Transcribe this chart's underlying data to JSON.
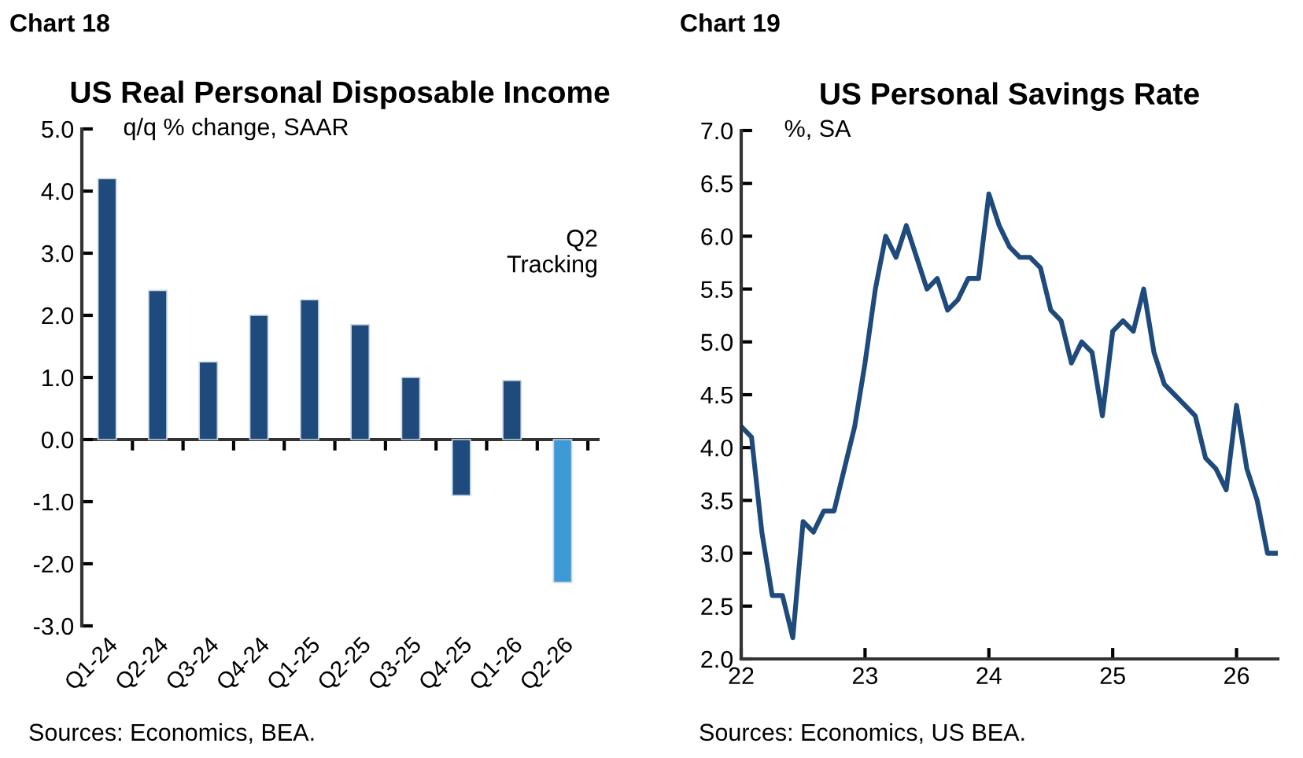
{
  "chart_data": [
    {
      "type": "bar",
      "title": "US Real Personal Disposable Income",
      "ylabel": "q/q % change, SAAR",
      "annotations": [
        "Chart 18",
        "Sources: Economics, BEA.",
        "Q2\nTracking"
      ],
      "categories": [
        "Q1-24",
        "Q2-24",
        "Q3-24",
        "Q4-24",
        "Q1-25",
        "Q2-25",
        "Q3-25",
        "Q4-25",
        "Q1-26",
        "Q2-26"
      ],
      "values": [
        4.2,
        2.4,
        1.25,
        2.0,
        2.25,
        1.85,
        1.0,
        -0.9,
        0.95,
        -2.3
      ],
      "colors": [
        "#1f4a7c",
        "#1f4a7c",
        "#1f4a7c",
        "#1f4a7c",
        "#1f4a7c",
        "#1f4a7c",
        "#1f4a7c",
        "#1f4a7c",
        "#1f4a7c",
        "#3d9ad6"
      ],
      "ylim": [
        -3.0,
        5.0
      ],
      "yticks": [
        {
          "value": -3,
          "label": "-3.0"
        },
        {
          "value": -2,
          "label": "-2.0"
        },
        {
          "value": -1,
          "label": "-1.0"
        },
        {
          "value": 0,
          "label": "0.0"
        },
        {
          "value": 1,
          "label": "1.0"
        },
        {
          "value": 2,
          "label": "2.0"
        },
        {
          "value": 3,
          "label": "3.0"
        },
        {
          "value": 4,
          "label": "4.0"
        },
        {
          "value": 5,
          "label": "5.0"
        }
      ]
    },
    {
      "type": "line",
      "title": "US Personal Savings Rate",
      "ylabel": "%, SA",
      "annotations": [
        "Chart 19",
        "Sources: Economics, US BEA."
      ],
      "x": [
        "2022-01",
        "2022-02",
        "2022-03",
        "2022-04",
        "2022-05",
        "2022-06",
        "2022-07",
        "2022-08",
        "2022-09",
        "2022-10",
        "2022-11",
        "2022-12",
        "2023-01",
        "2023-02",
        "2023-03",
        "2023-04",
        "2023-05",
        "2023-06",
        "2023-07",
        "2023-08",
        "2023-09",
        "2023-10",
        "2023-11",
        "2023-12",
        "2024-01",
        "2024-02",
        "2024-03",
        "2024-04",
        "2024-05",
        "2024-06",
        "2024-07",
        "2024-08",
        "2024-09",
        "2024-10",
        "2024-11",
        "2024-12",
        "2025-01",
        "2025-02",
        "2025-03",
        "2025-04",
        "2025-05",
        "2025-06",
        "2025-07",
        "2025-08",
        "2025-09",
        "2025-10",
        "2025-11",
        "2025-12",
        "2026-01",
        "2026-02",
        "2026-03",
        "2026-04",
        "2026-05"
      ],
      "series": [
        {
          "color": "#1f4a7c",
          "values": [
            4.2,
            4.1,
            3.2,
            2.6,
            2.6,
            2.2,
            3.3,
            3.2,
            3.4,
            3.4,
            3.8,
            4.2,
            4.8,
            5.5,
            6.0,
            5.8,
            6.1,
            5.8,
            5.5,
            5.6,
            5.3,
            5.4,
            5.6,
            5.6,
            6.4,
            6.1,
            5.9,
            5.8,
            5.8,
            5.7,
            5.3,
            5.2,
            4.8,
            5.0,
            4.9,
            4.3,
            5.1,
            5.2,
            5.1,
            5.5,
            4.9,
            4.6,
            4.5,
            4.4,
            4.3,
            3.9,
            3.8,
            3.6,
            4.4,
            3.8,
            3.5,
            3.0,
            3.0
          ]
        }
      ],
      "xlim": [
        "2022-01",
        "2026-05"
      ],
      "xticks": [
        {
          "value": "2022-01",
          "label": "22"
        },
        {
          "value": "2023-01",
          "label": "23"
        },
        {
          "value": "2024-01",
          "label": "24"
        },
        {
          "value": "2025-01",
          "label": "25"
        },
        {
          "value": "2026-01",
          "label": "26"
        }
      ],
      "ylim": [
        2.0,
        7.0
      ],
      "yticks": [
        {
          "value": 2,
          "label": "2.0"
        },
        {
          "value": 2.5,
          "label": "2.5"
        },
        {
          "value": 3,
          "label": "3.0"
        },
        {
          "value": 3.5,
          "label": "3.5"
        },
        {
          "value": 4,
          "label": "4.0"
        },
        {
          "value": 4.5,
          "label": "4.5"
        },
        {
          "value": 5,
          "label": "5.0"
        },
        {
          "value": 5.5,
          "label": "5.5"
        },
        {
          "value": 6,
          "label": "6.0"
        },
        {
          "value": 6.5,
          "label": "6.5"
        },
        {
          "value": 7,
          "label": "7.0"
        }
      ],
      "grid": false,
      "marker": "none",
      "line_style": "solid"
    }
  ]
}
